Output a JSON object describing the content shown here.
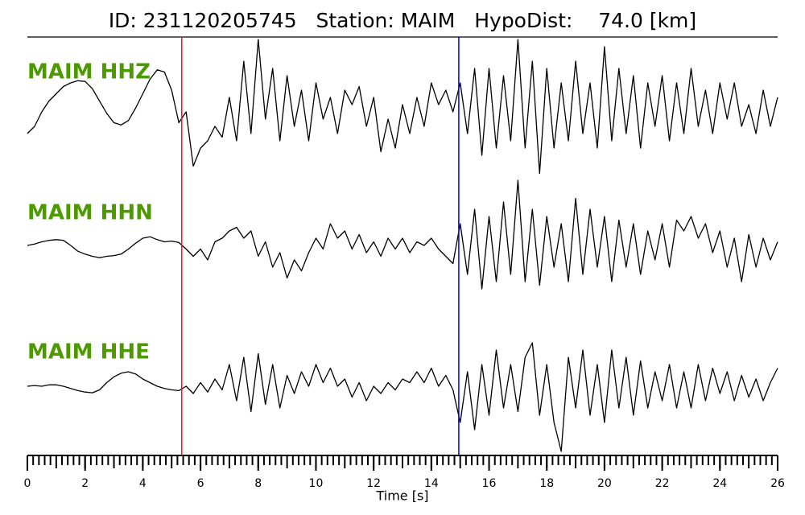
{
  "chart_data": {
    "type": "line",
    "title": "ID: 231120205745   Station: MAIM   HypoDist:    74.0 [km]",
    "x_label": "Time [s]",
    "xlim": [
      0,
      26
    ],
    "xticks": [
      0,
      2,
      4,
      6,
      8,
      10,
      12,
      14,
      16,
      18,
      20,
      22,
      24,
      26
    ],
    "xminor_step": 0.2,
    "ylim": [
      -1,
      1
    ],
    "vlines": [
      {
        "x": 5.35,
        "color": "#e41a1c"
      },
      {
        "x": 14.95,
        "color": "#0000ee"
      }
    ],
    "x": [
      0,
      0.25,
      0.5,
      0.75,
      1,
      1.25,
      1.5,
      1.75,
      2,
      2.25,
      2.5,
      2.75,
      3,
      3.25,
      3.5,
      3.75,
      4,
      4.25,
      4.5,
      4.75,
      5,
      5.25,
      5.5,
      5.75,
      6,
      6.25,
      6.5,
      6.75,
      7,
      7.25,
      7.5,
      7.75,
      8,
      8.25,
      8.5,
      8.75,
      9,
      9.25,
      9.5,
      9.75,
      10,
      10.25,
      10.5,
      10.75,
      11,
      11.25,
      11.5,
      11.75,
      12,
      12.25,
      12.5,
      12.75,
      13,
      13.25,
      13.5,
      13.75,
      14,
      14.25,
      14.5,
      14.75,
      15,
      15.25,
      15.5,
      15.75,
      16,
      16.25,
      16.5,
      16.75,
      17,
      17.25,
      17.5,
      17.75,
      18,
      18.25,
      18.5,
      18.75,
      19,
      19.25,
      19.5,
      19.75,
      20,
      20.25,
      20.5,
      20.75,
      21,
      21.25,
      21.5,
      21.75,
      22,
      22.25,
      22.5,
      22.75,
      23,
      23.25,
      23.5,
      23.75,
      24,
      24.25,
      24.5,
      24.75,
      25,
      25.25,
      25.5,
      25.75,
      26
    ],
    "series": [
      {
        "name": "MAIM HHZ",
        "color": "#000000",
        "label_color": "#4c9a00",
        "values": [
          -0.4,
          -0.3,
          -0.1,
          0.05,
          0.15,
          0.25,
          0.3,
          0.33,
          0.32,
          0.22,
          0.05,
          -0.12,
          -0.25,
          -0.28,
          -0.22,
          -0.05,
          0.15,
          0.35,
          0.48,
          0.45,
          0.2,
          -0.25,
          -0.1,
          -0.85,
          -0.6,
          -0.5,
          -0.3,
          -0.45,
          0.1,
          -0.5,
          0.6,
          -0.4,
          0.9,
          -0.2,
          0.5,
          -0.5,
          0.4,
          -0.3,
          0.2,
          -0.5,
          0.3,
          -0.2,
          0.1,
          -0.4,
          0.2,
          0,
          0.25,
          -0.3,
          0.1,
          -0.65,
          -0.2,
          -0.6,
          0,
          -0.4,
          0.1,
          -0.3,
          0.3,
          0,
          0.2,
          -0.1,
          0.3,
          -0.4,
          0.5,
          -0.7,
          0.5,
          -0.6,
          0.4,
          -0.5,
          0.9,
          -0.6,
          0.6,
          -0.95,
          0.5,
          -0.6,
          0.3,
          -0.5,
          0.6,
          -0.4,
          0.3,
          -0.6,
          0.8,
          -0.5,
          0.5,
          -0.4,
          0.4,
          -0.6,
          0.3,
          -0.3,
          0.4,
          -0.5,
          0.3,
          -0.4,
          0.5,
          -0.3,
          0.2,
          -0.4,
          0.3,
          -0.2,
          0.3,
          -0.3,
          0,
          -0.4,
          0.2,
          -0.3,
          0.1
        ]
      },
      {
        "name": "MAIM HHN",
        "color": "#000000",
        "label_color": "#4c9a00",
        "values": [
          0,
          0.02,
          0.05,
          0.07,
          0.08,
          0.07,
          0,
          -0.08,
          -0.12,
          -0.15,
          -0.17,
          -0.15,
          -0.14,
          -0.12,
          -0.05,
          0.03,
          0.1,
          0.12,
          0.08,
          0.05,
          0.06,
          0.04,
          -0.05,
          -0.15,
          -0.05,
          -0.2,
          0.05,
          0.1,
          0.2,
          0.25,
          0.1,
          0.2,
          -0.15,
          0.05,
          -0.3,
          -0.1,
          -0.45,
          -0.2,
          -0.35,
          -0.1,
          0.1,
          -0.05,
          0.3,
          0.1,
          0.2,
          -0.05,
          0.15,
          -0.1,
          0.05,
          -0.15,
          0.1,
          -0.05,
          0.1,
          -0.1,
          0.05,
          0,
          0.1,
          -0.05,
          -0.15,
          -0.25,
          0.3,
          -0.4,
          0.5,
          -0.6,
          0.4,
          -0.5,
          0.6,
          -0.4,
          0.9,
          -0.5,
          0.5,
          -0.55,
          0.4,
          -0.3,
          0.3,
          -0.5,
          0.65,
          -0.4,
          0.5,
          -0.3,
          0.4,
          -0.5,
          0.35,
          -0.3,
          0.3,
          -0.4,
          0.2,
          -0.2,
          0.3,
          -0.3,
          0.35,
          0.2,
          0.4,
          0.1,
          0.3,
          -0.1,
          0.2,
          -0.3,
          0.1,
          -0.5,
          0.15,
          -0.3,
          0.1,
          -0.2,
          0.05
        ]
      },
      {
        "name": "MAIM HHE",
        "color": "#000000",
        "label_color": "#4c9a00",
        "values": [
          0,
          0.01,
          0,
          0.02,
          0.02,
          0,
          -0.03,
          -0.06,
          -0.08,
          -0.09,
          -0.05,
          0.05,
          0.13,
          0.18,
          0.2,
          0.17,
          0.1,
          0.05,
          0,
          -0.03,
          -0.05,
          -0.06,
          0,
          -0.1,
          0.05,
          -0.08,
          0.1,
          -0.05,
          0.3,
          -0.2,
          0.4,
          -0.35,
          0.45,
          -0.25,
          0.3,
          -0.3,
          0.15,
          -0.1,
          0.2,
          0,
          0.3,
          0.05,
          0.25,
          0,
          0.1,
          -0.15,
          0.05,
          -0.2,
          0,
          -0.1,
          0.05,
          -0.05,
          0.1,
          0.05,
          0.2,
          0.05,
          0.25,
          0,
          0.15,
          -0.05,
          -0.5,
          0.2,
          -0.6,
          0.3,
          -0.4,
          0.5,
          -0.3,
          0.3,
          -0.35,
          0.4,
          0.6,
          -0.4,
          0.3,
          -0.5,
          -0.9,
          0.4,
          -0.3,
          0.5,
          -0.4,
          0.3,
          -0.5,
          0.5,
          -0.3,
          0.4,
          -0.4,
          0.35,
          -0.3,
          0.2,
          -0.2,
          0.3,
          -0.3,
          0.2,
          -0.3,
          0.3,
          -0.2,
          0.25,
          -0.1,
          0.2,
          -0.2,
          0.15,
          -0.15,
          0.1,
          -0.2,
          0.05,
          0.25
        ]
      }
    ]
  }
}
